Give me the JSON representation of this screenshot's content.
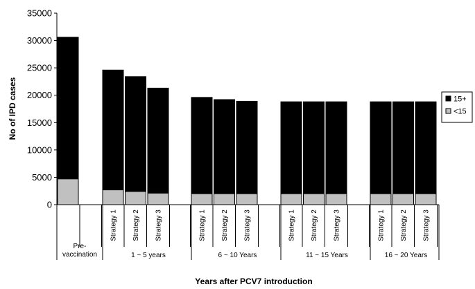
{
  "chart_data": {
    "type": "bar",
    "stacked": true,
    "ylabel": "No of IPD cases",
    "xlabel": "Years after PCV7 introduction",
    "ylim": [
      0,
      35000
    ],
    "yticks": [
      "0",
      "5000",
      "10000",
      "15000",
      "20000",
      "25000",
      "30000",
      "35000"
    ],
    "legend_position": "right",
    "grid": false,
    "groups": [
      {
        "label": "Pre-\nvaccination",
        "bars": [
          {
            "label": "",
            "lt15": 4700,
            "total": 30600
          }
        ]
      },
      {
        "label": "1 ~ 5 years",
        "bars": [
          {
            "label": "Strategy 1",
            "lt15": 2700,
            "total": 24600
          },
          {
            "label": "Strategy 2",
            "lt15": 2400,
            "total": 23400
          },
          {
            "label": "Strategy 3",
            "lt15": 2100,
            "total": 21300
          }
        ]
      },
      {
        "label": "6 ~ 10 Years",
        "bars": [
          {
            "label": "Strategy 1",
            "lt15": 2000,
            "total": 19600
          },
          {
            "label": "Strategy 2",
            "lt15": 2000,
            "total": 19200
          },
          {
            "label": "Strategy 3",
            "lt15": 2000,
            "total": 18900
          }
        ]
      },
      {
        "label": "11 ~ 15 Years",
        "bars": [
          {
            "label": "Strategy 1",
            "lt15": 2000,
            "total": 18800
          },
          {
            "label": "Strategy 2",
            "lt15": 2000,
            "total": 18800
          },
          {
            "label": "Strategy 3",
            "lt15": 2000,
            "total": 18800
          }
        ]
      },
      {
        "label": "16 ~ 20 Years",
        "bars": [
          {
            "label": "Strategy 1",
            "lt15": 2000,
            "total": 18800
          },
          {
            "label": "Strategy 2",
            "lt15": 2000,
            "total": 18800
          },
          {
            "label": "Strategy 3",
            "lt15": 2000,
            "total": 18800
          }
        ]
      }
    ],
    "series": [
      {
        "name": "15+",
        "color": "#000000"
      },
      {
        "name": "<15",
        "color": "#c0c0c0"
      }
    ]
  }
}
